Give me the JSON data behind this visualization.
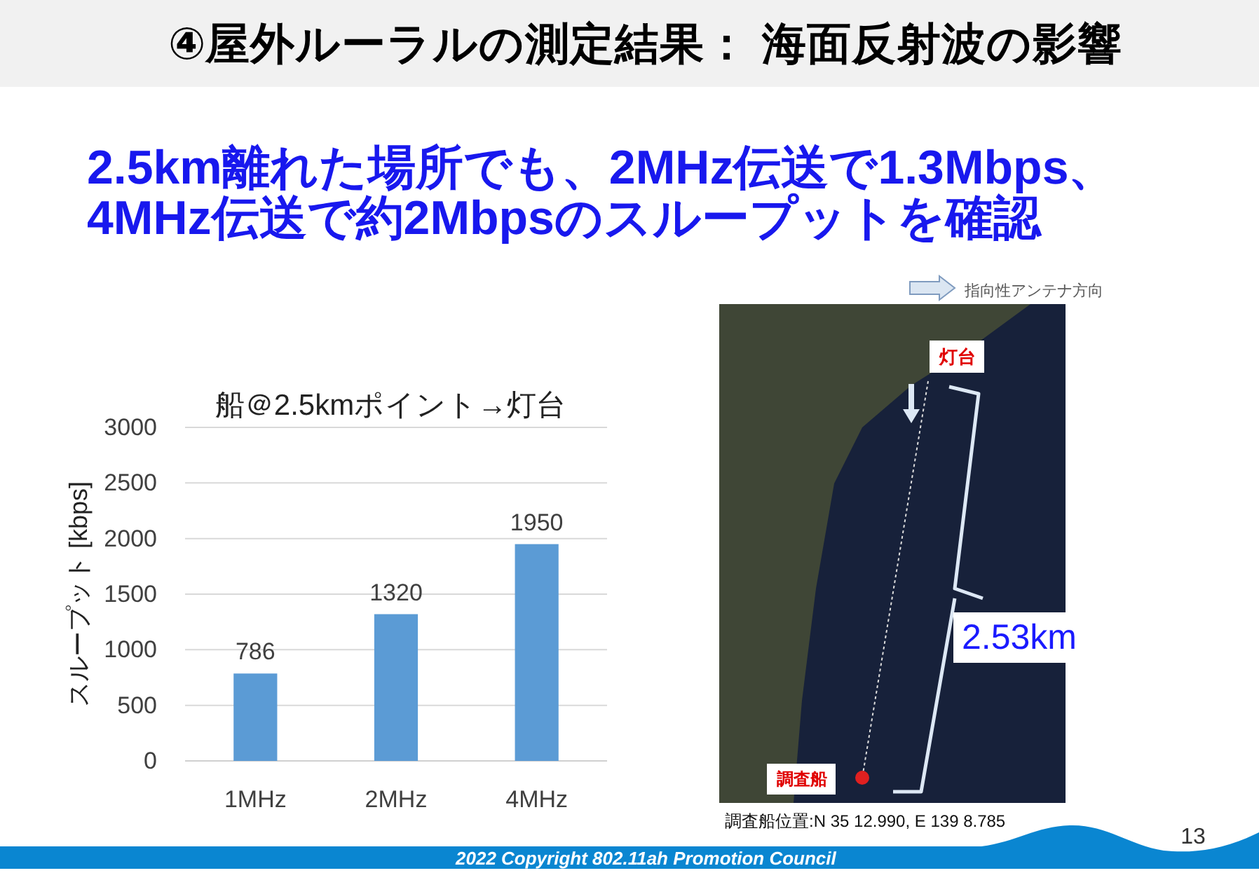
{
  "chart_data": {
    "type": "bar",
    "title": "船＠2.5kmポイント→灯台",
    "ylabel": "スループット [kbps]",
    "categories": [
      "1MHz",
      "2MHz",
      "4MHz"
    ],
    "values": [
      786,
      1320,
      1950
    ],
    "color": "#5b9bd5",
    "ylim": [
      0,
      3000
    ],
    "yticks": [
      0,
      500,
      1000,
      1500,
      2000,
      2500,
      3000
    ],
    "grid": "y",
    "data_labels": true,
    "annotations": [
      "④屋外ルーラルの測定結果： 海面反射波の影響",
      "2.5km離れた場所でも、2MHz伝送で1.3Mbps、",
      "4MHz伝送で約2Mbpsのスループットを確認",
      "指向性アンテナ方向",
      "灯台",
      "2.53km",
      "調査船",
      "調査船位置:N 35 12.990, E 139 8.785",
      "13",
      "2022 Copyright 802.11ah Promotion Council"
    ]
  }
}
